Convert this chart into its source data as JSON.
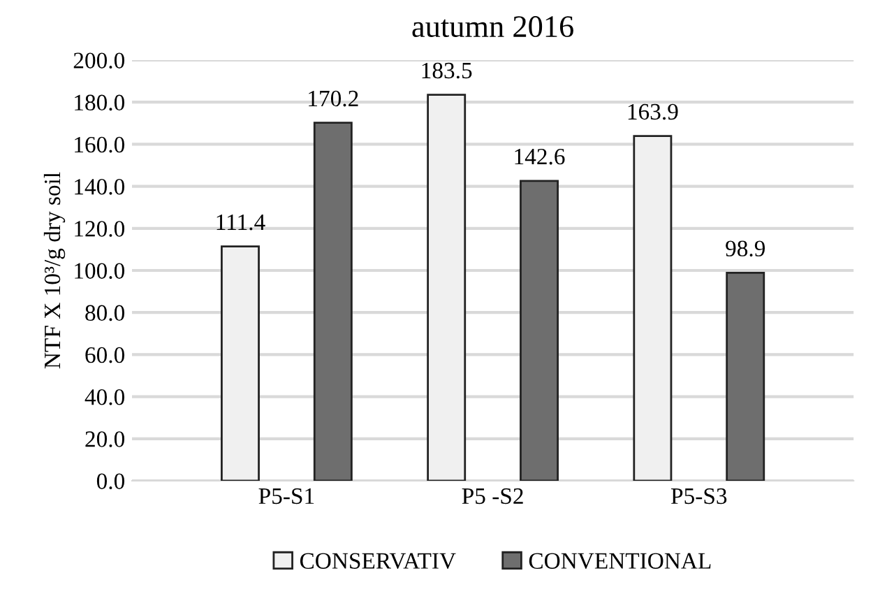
{
  "chart_data": {
    "type": "bar",
    "title": "autumn 2016",
    "ylabel": "NTF X 10³/g dry soil",
    "categories": [
      "P5-S1",
      "P5 -S2",
      "P5-S3"
    ],
    "series": [
      {
        "name": "CONSERVATIV",
        "color": "#f0f0f0",
        "values": [
          111.4,
          183.5,
          163.9
        ]
      },
      {
        "name": "CONVENTIONAL",
        "color": "#6e6e6e",
        "values": [
          170.2,
          142.6,
          98.9
        ]
      }
    ],
    "ylim": [
      0,
      200
    ],
    "yticks": [
      {
        "value": 0,
        "label": "0.0"
      },
      {
        "value": 20,
        "label": "20.0"
      },
      {
        "value": 40,
        "label": "40.0"
      },
      {
        "value": 60,
        "label": "60.0"
      },
      {
        "value": 80,
        "label": "80.0"
      },
      {
        "value": 100,
        "label": "100.0"
      },
      {
        "value": 120,
        "label": "120.0"
      },
      {
        "value": 140,
        "label": "140.0"
      },
      {
        "value": 160,
        "label": "160.0"
      },
      {
        "value": 180,
        "label": "180.0"
      },
      {
        "value": 200,
        "label": "200.0"
      }
    ],
    "grid": "y",
    "legend": "bottom",
    "data_labels": true
  }
}
